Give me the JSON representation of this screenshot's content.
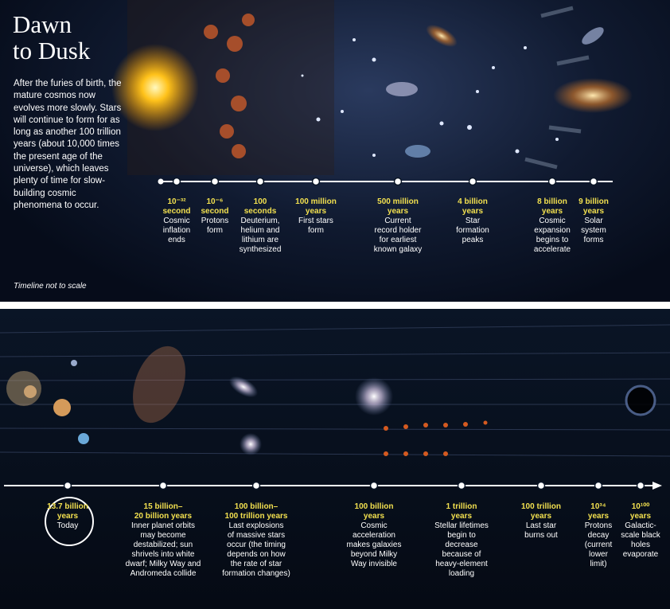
{
  "title": [
    "Dawn",
    "to Dusk"
  ],
  "intro": "After the furies of birth, the mature cosmos now evolves more slowly. Stars will continue to form for as long as another 100 trillion years (about 10,000 times the present age of the universe), which leaves plenty of time for slow-building cosmic phenomena to occur.",
  "note": "Timeline not to scale",
  "top_events": [
    {
      "time": [
        "10⁻³²",
        "second"
      ],
      "desc": [
        "Cosmic",
        "inflation",
        "ends"
      ]
    },
    {
      "time": [
        "10⁻⁶",
        "second"
      ],
      "desc": [
        "Protons",
        "form"
      ]
    },
    {
      "time": [
        "100",
        "seconds"
      ],
      "desc": [
        "Deuterium,",
        "helium and",
        "lithium are",
        "synthesized"
      ]
    },
    {
      "time": [
        "100 million",
        "years"
      ],
      "desc": [
        "First stars",
        "form"
      ]
    },
    {
      "time": [
        "500 million",
        "years"
      ],
      "desc": [
        "Current",
        "record holder",
        "for earliest",
        "known galaxy"
      ]
    },
    {
      "time": [
        "4 billion",
        "years"
      ],
      "desc": [
        "Star",
        "formation",
        "peaks"
      ]
    },
    {
      "time": [
        "8 billion",
        "years"
      ],
      "desc": [
        "Cosmic",
        "expansion",
        "begins to",
        "accelerate"
      ]
    },
    {
      "time": [
        "9 billion",
        "years"
      ],
      "desc": [
        "Solar",
        "system",
        "forms"
      ]
    }
  ],
  "bottom_events": [
    {
      "time": [
        "13.7 billion",
        "years"
      ],
      "desc": [
        "Today"
      ]
    },
    {
      "time": [
        "15 billion–",
        "20 billion years"
      ],
      "desc": [
        "Inner planet orbits",
        "may become",
        "destabilized; sun",
        "shrivels into white",
        "dwarf; Milky Way and",
        "Andromeda collide"
      ]
    },
    {
      "time": [
        "100 billion–",
        "100 trillion years"
      ],
      "desc": [
        "Last explosions",
        "of massive stars",
        "occur (the timing",
        "depends on how",
        "the rate of star",
        "formation changes)"
      ]
    },
    {
      "time": [
        "100 billion",
        "years"
      ],
      "desc": [
        "Cosmic",
        "acceleration",
        "makes galaxies",
        "beyond Milky",
        "Way invisible"
      ]
    },
    {
      "time": [
        "1 trillion",
        "years"
      ],
      "desc": [
        "Stellar lifetimes",
        "begin to",
        "decrease",
        "because of",
        "heavy-element",
        "loading"
      ]
    },
    {
      "time": [
        "100 trillion",
        "years"
      ],
      "desc": [
        "Last star",
        "burns out"
      ]
    },
    {
      "time": [
        "10³⁴",
        "years"
      ],
      "desc": [
        "Protons",
        "decay",
        "(current",
        "lower",
        "limit)"
      ]
    },
    {
      "time": [
        "10¹⁰⁰",
        "years"
      ],
      "desc": [
        "Galactic-",
        "scale black",
        "holes",
        "evaporate"
      ]
    }
  ]
}
